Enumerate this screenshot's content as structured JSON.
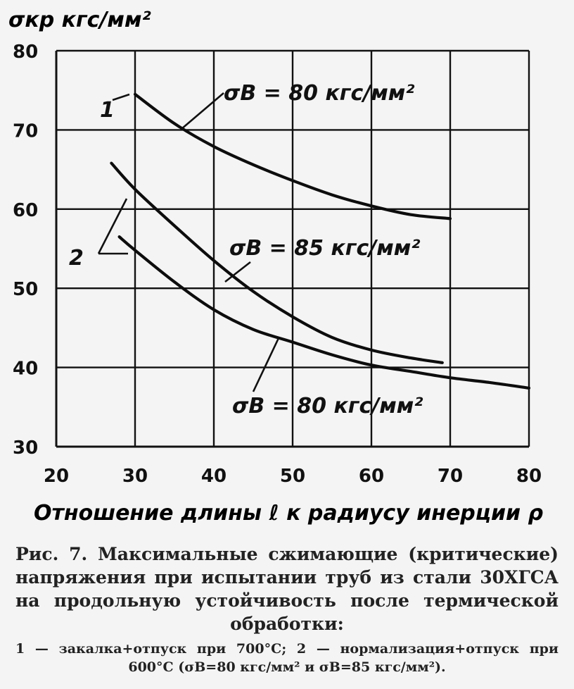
{
  "chart_data": {
    "type": "line",
    "ylabel": "σкр кгс/мм²",
    "xlabel": "Отношение длины ℓ к радиусу инерции ρ",
    "xlim": [
      20,
      80
    ],
    "ylim": [
      30,
      80
    ],
    "xticks": [
      20,
      30,
      40,
      50,
      60,
      70,
      80
    ],
    "yticks": [
      30,
      40,
      50,
      60,
      70,
      80
    ],
    "grid": true,
    "series": [
      {
        "label": "1",
        "annotation": "σB = 80 кгс/мм²",
        "x": [
          30,
          35,
          40,
          45,
          50,
          55,
          60,
          65,
          70
        ],
        "y": [
          74.5,
          70.8,
          67.9,
          65.6,
          63.6,
          61.8,
          60.4,
          59.3,
          58.8
        ]
      },
      {
        "label": "2",
        "annotation": "σB = 85 кгс/мм²",
        "x": [
          27,
          30,
          35,
          40,
          45,
          50,
          55,
          60,
          65,
          69
        ],
        "y": [
          65.8,
          62.5,
          57.9,
          53.5,
          49.6,
          46.4,
          43.8,
          42.2,
          41.2,
          40.6
        ]
      },
      {
        "label": "2",
        "annotation": "σB = 80 кгс/мм²",
        "x": [
          28,
          30,
          35,
          40,
          45,
          50,
          55,
          60,
          65,
          70,
          75,
          80
        ],
        "y": [
          56.5,
          54.8,
          50.8,
          47.3,
          44.8,
          43.2,
          41.6,
          40.3,
          39.5,
          38.7,
          38.1,
          37.4
        ]
      }
    ]
  },
  "caption": {
    "main": "Рис. 7. Максимальные сжимающие (критические) напряжения при испытании труб из стали 30ХГСА на продольную устойчивость после термической обработки:",
    "note": "1 — закалка+отпуск при 700°С; 2 — нормализация+отпуск при 600°С (σB=80 кгс/мм² и σB=85 кгс/мм²)."
  }
}
